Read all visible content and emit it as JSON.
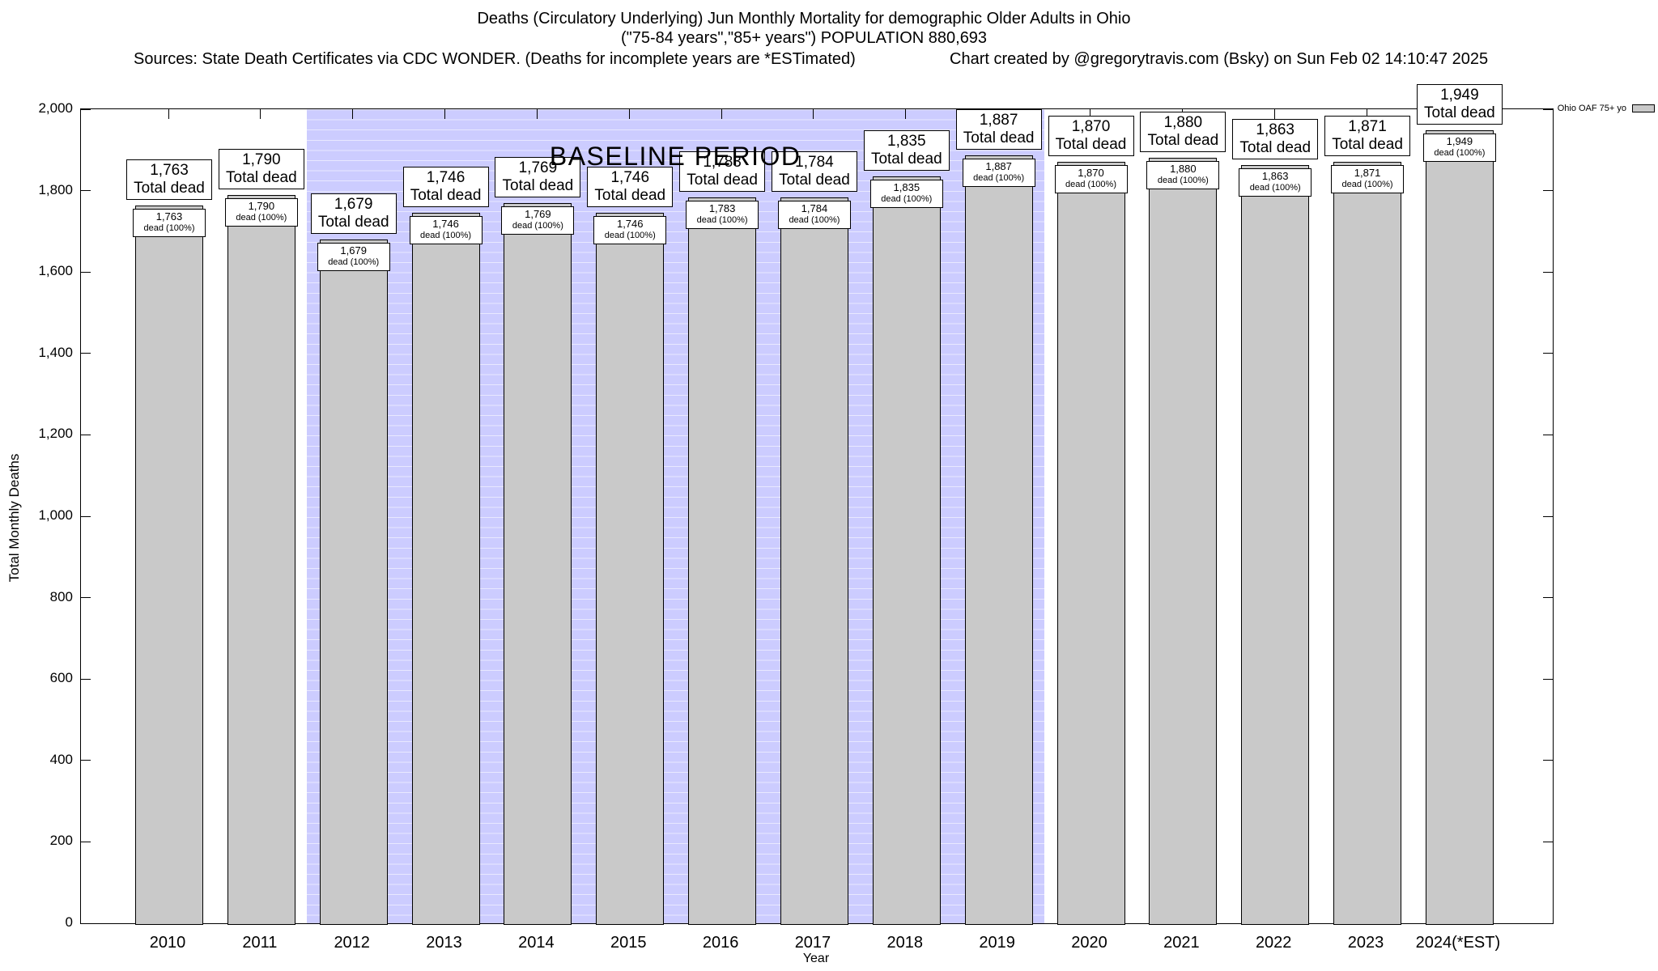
{
  "title": {
    "line1": "Deaths (Circulatory Underlying) Jun Monthly Mortality for demographic Older Adults in Ohio",
    "line2": "(\"75-84 years\",\"85+ years\") POPULATION 880,693",
    "sources": "Sources: State Death Certificates via CDC WONDER. (Deaths for incomplete years are *ESTimated)",
    "credit": "Chart created by @gregorytravis.com (Bsky) on Sun Feb 02 14:10:47 2025"
  },
  "legend": {
    "label": "Ohio OAF 75+ yo",
    "swatch_color": "#c9c9c9",
    "position": "top-right"
  },
  "chart_data": {
    "type": "bar",
    "title": "Deaths (Circulatory Underlying) Jun Monthly Mortality for demographic Older Adults in Ohio",
    "subtitle": "(\"75-84 years\",\"85+ years\") POPULATION 880,693",
    "xlabel": "Year",
    "ylabel": "Total Monthly Deaths",
    "ylim": [
      0,
      2000
    ],
    "ytick_step": 200,
    "ytick_labels": [
      "0",
      "200",
      "400",
      "600",
      "800",
      "1,000",
      "1,200",
      "1,400",
      "1,600",
      "1,800",
      "2,000"
    ],
    "categories": [
      "2010",
      "2011",
      "2012",
      "2013",
      "2014",
      "2015",
      "2016",
      "2017",
      "2018",
      "2019",
      "2020",
      "2021",
      "2022",
      "2023",
      "2024(*EST)"
    ],
    "values": [
      1763,
      1790,
      1679,
      1746,
      1769,
      1746,
      1783,
      1784,
      1835,
      1887,
      1870,
      1880,
      1863,
      1871,
      1949
    ],
    "value_labels": [
      "1,763",
      "1,790",
      "1,679",
      "1,746",
      "1,769",
      "1,746",
      "1,783",
      "1,784",
      "1,835",
      "1,887",
      "1,870",
      "1,880",
      "1,863",
      "1,871",
      "1,949"
    ],
    "total_caption": "Total dead",
    "inner_caption": "dead (100%)",
    "baseline": {
      "label": "BASELINE PERIOD",
      "from_index": 2,
      "to_index": 9,
      "from_year": "2012",
      "to_year": "2019",
      "band_color": "#ccccff"
    },
    "colors": {
      "bar_fill": "#c9c9c9",
      "bar_border": "#000000",
      "band": "#ccccff"
    },
    "grid": "minor horizontal stripes visible on baseline band only",
    "legend_entries": [
      "Ohio OAF 75+ yo"
    ]
  }
}
